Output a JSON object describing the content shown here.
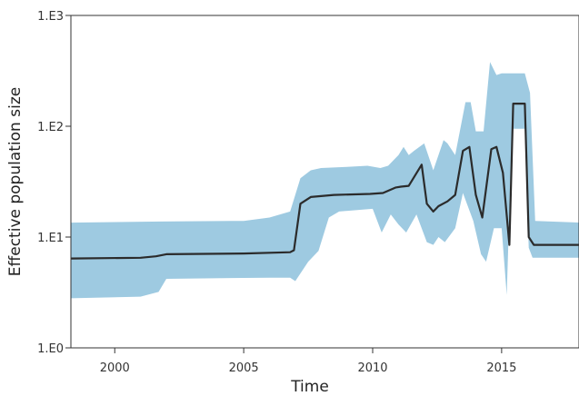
{
  "chart_data": {
    "type": "area",
    "xlabel": "Time",
    "ylabel": "Effective population size",
    "yscale": "log",
    "xlim": [
      1998.3,
      2018
    ],
    "ylim": [
      1,
      1000
    ],
    "x_ticks": [
      2000,
      2005,
      2010,
      2015
    ],
    "x_tick_labels": [
      "2000",
      "2005",
      "2010",
      "2015"
    ],
    "y_ticks": [
      1,
      10,
      100,
      1000
    ],
    "y_tick_labels": [
      "1.E0",
      "1.E1",
      "1.E2",
      "1.E3"
    ],
    "grid": false,
    "colors": {
      "band": "#9ecae1",
      "line": "#2b2b2b"
    },
    "series": [
      {
        "style": "median-line",
        "x": [
          1998.3,
          2001.0,
          2001.6,
          2002.0,
          2005.0,
          2006.8,
          2006.95,
          2007.2,
          2007.6,
          2008.5,
          2009.9,
          2010.4,
          2010.9,
          2011.1,
          2011.4,
          2011.9,
          2012.1,
          2012.35,
          2012.55,
          2012.9,
          2013.2,
          2013.5,
          2013.75,
          2014.0,
          2014.25,
          2014.6,
          2014.8,
          2015.05,
          2015.3,
          2015.45,
          2015.9,
          2016.05,
          2016.25,
          2018.0
        ],
        "y": [
          6.4,
          6.5,
          6.7,
          7.0,
          7.1,
          7.3,
          7.6,
          20.0,
          23.0,
          24.0,
          24.5,
          25.0,
          28.0,
          28.5,
          29.0,
          45.0,
          20.0,
          17.0,
          19.0,
          21.0,
          24.0,
          60.0,
          65.0,
          24.0,
          15.0,
          62.0,
          65.0,
          38.0,
          8.5,
          160.0,
          160.0,
          10.0,
          8.5,
          8.5
        ]
      },
      {
        "style": "upper-bound",
        "x": [
          1998.3,
          2001.8,
          2005.0,
          2006.0,
          2006.8,
          2007.2,
          2007.6,
          2008.0,
          2009.0,
          2009.8,
          2010.3,
          2010.6,
          2011.0,
          2011.2,
          2011.4,
          2011.6,
          2012.0,
          2012.35,
          2012.55,
          2012.75,
          2012.9,
          2013.2,
          2013.6,
          2013.8,
          2014.0,
          2014.3,
          2014.55,
          2014.8,
          2015.0,
          2015.3,
          2015.9,
          2016.1,
          2016.3,
          2018.0
        ],
        "y": [
          13.5,
          13.8,
          14.0,
          15.0,
          17.0,
          34.0,
          40.0,
          42.0,
          43.0,
          44.0,
          42.0,
          44.0,
          55.0,
          65.0,
          55.0,
          60.0,
          70.0,
          40.0,
          55.0,
          75.0,
          70.0,
          55.0,
          165.0,
          165.0,
          90.0,
          90.0,
          380.0,
          290.0,
          300.0,
          300.0,
          300.0,
          200.0,
          14.0,
          13.5
        ]
      },
      {
        "style": "lower-bound",
        "x": [
          1998.3,
          2001.0,
          2001.7,
          2002.0,
          2006.0,
          2006.8,
          2007.0,
          2007.5,
          2007.9,
          2008.3,
          2008.7,
          2010.0,
          2010.35,
          2010.7,
          2011.0,
          2011.3,
          2011.7,
          2012.1,
          2012.35,
          2012.55,
          2012.8,
          2013.2,
          2013.5,
          2013.9,
          2014.2,
          2014.4,
          2014.7,
          2015.0,
          2015.2,
          2015.4,
          2015.9,
          2016.05,
          2016.2,
          2018.0
        ],
        "y": [
          2.8,
          2.9,
          3.2,
          4.2,
          4.3,
          4.3,
          4.0,
          6.0,
          7.5,
          15.0,
          17.0,
          18.0,
          11.0,
          16.0,
          13.0,
          11.0,
          16.0,
          9.0,
          8.5,
          10.0,
          9.0,
          12.0,
          25.0,
          14.0,
          7.0,
          6.0,
          12.0,
          12.0,
          3.0,
          95.0,
          95.0,
          8.0,
          6.5,
          6.5
        ]
      }
    ]
  }
}
